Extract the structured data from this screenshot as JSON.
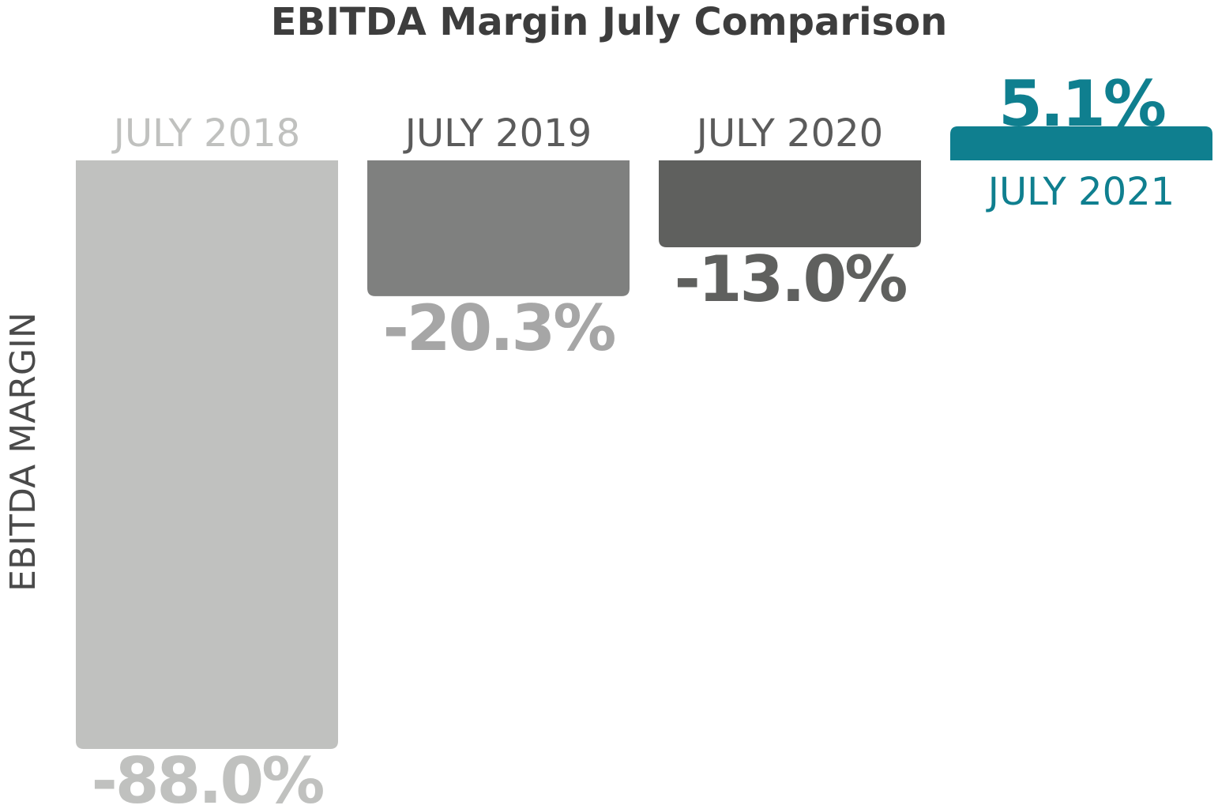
{
  "chart_data": {
    "type": "bar",
    "title": "EBITDA Margin July Comparison",
    "xlabel": "",
    "ylabel": "EBITDA MARGIN",
    "ylim": [
      -88.0,
      5.1
    ],
    "grid": false,
    "legend": "none",
    "categories": [
      "JULY 2018",
      "JULY 2019",
      "JULY 2020",
      "JULY 2021"
    ],
    "values": [
      -88.0,
      -20.3,
      -13.0,
      5.1
    ],
    "value_labels": [
      "-88.0%",
      "-20.3%",
      "-13.0%",
      "5.1%"
    ],
    "bar_colors": [
      "#c0c1bf",
      "#7f807f",
      "#5f605e",
      "#0f7f8f"
    ],
    "label_colors": [
      "#c0c1bf",
      "#5b5b5b",
      "#5b5b5b",
      "#0f7f8f"
    ],
    "value_label_colors": [
      "#c0c1bf",
      "#a6a6a6",
      "#5f605e",
      "#0f7f8f"
    ]
  }
}
